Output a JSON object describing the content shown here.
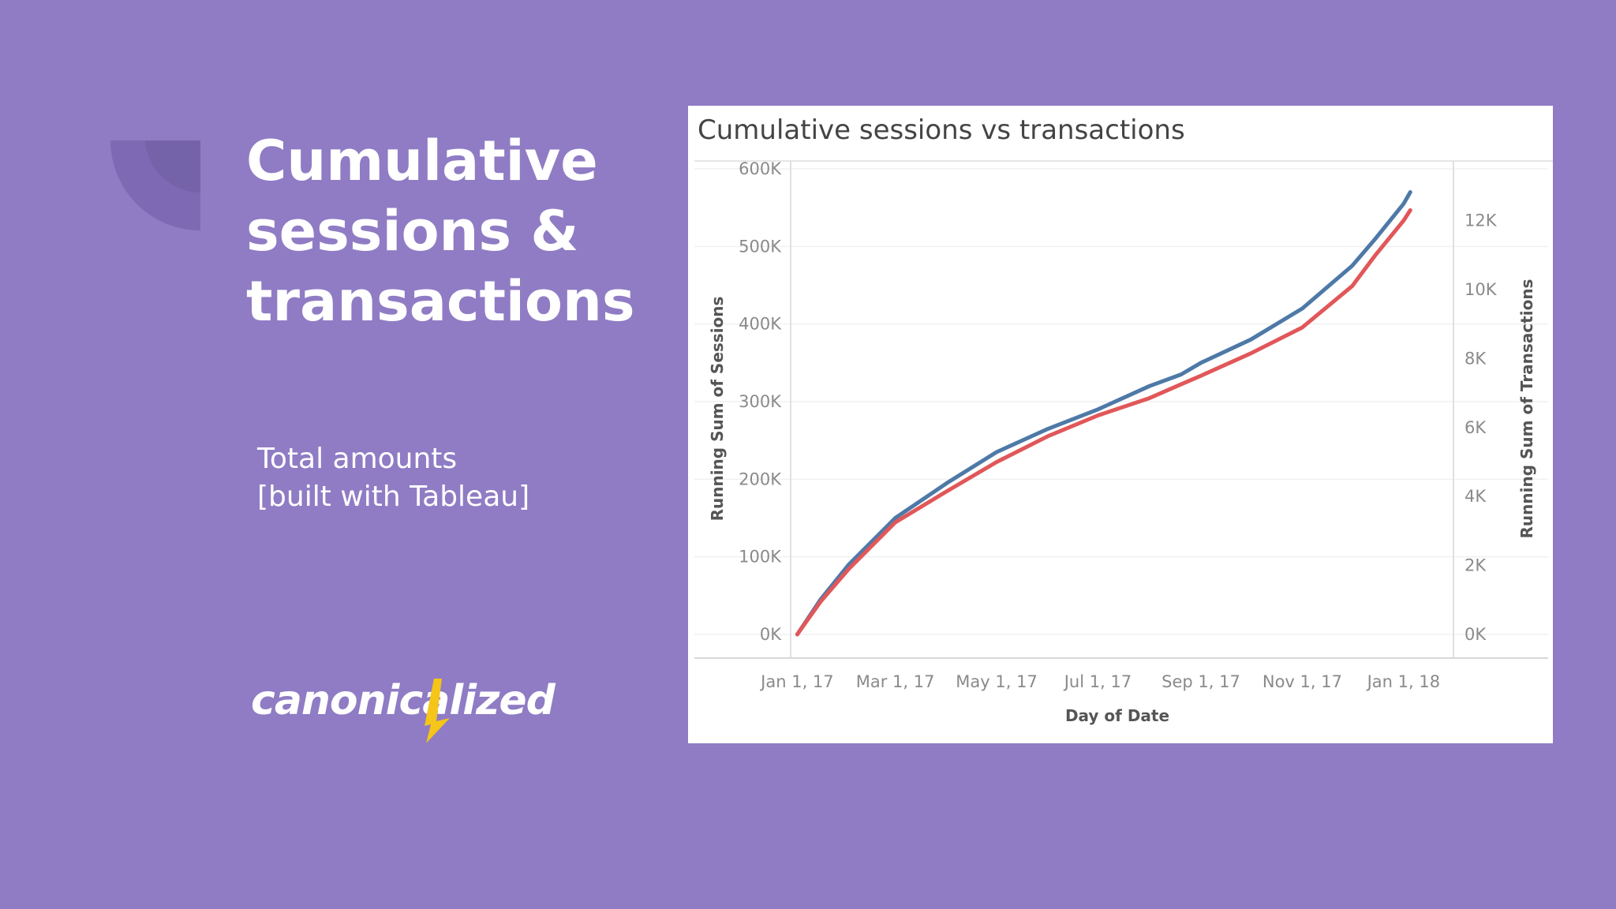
{
  "slide": {
    "heading_lines": [
      "Cumulative",
      "sessions &",
      "transactions"
    ],
    "subtitle_lines": [
      "Total amounts",
      "[built with Tableau]"
    ],
    "logo_text": "canonicalized",
    "colors": {
      "background": "#8f7cc4",
      "logo_accent": "#f5c518"
    }
  },
  "chart_data": {
    "type": "line",
    "title": "Cumulative sessions vs transactions",
    "xlabel": "Day of Date",
    "ylabel": "Running Sum of Sessions",
    "y2label": "Running Sum of Transactions",
    "x_ticks": [
      "Jan 1, 17",
      "Mar 1, 17",
      "May 1, 17",
      "Jul 1, 17",
      "Sep 1, 17",
      "Nov 1, 17",
      "Jan 1, 18"
    ],
    "y_ticks": [
      "0K",
      "100K",
      "200K",
      "300K",
      "400K",
      "500K",
      "600K"
    ],
    "y2_ticks": [
      "0K",
      "2K",
      "4K",
      "6K",
      "8K",
      "10K",
      "12K"
    ],
    "ylim": [
      0,
      600000
    ],
    "y2lim": [
      0,
      13500
    ],
    "xlim": [
      "2016-12-28",
      "2018-01-31"
    ],
    "grid": true,
    "series": [
      {
        "axis": "left",
        "color": "#4e79a7",
        "x": [
          "2017-01-01",
          "2017-01-15",
          "2017-02-01",
          "2017-03-01",
          "2017-04-01",
          "2017-05-01",
          "2017-06-01",
          "2017-07-01",
          "2017-08-01",
          "2017-08-20",
          "2017-09-01",
          "2017-10-01",
          "2017-11-01",
          "2017-12-01",
          "2017-12-15",
          "2018-01-01",
          "2018-01-05"
        ],
        "y": [
          0,
          45000,
          90000,
          150000,
          195000,
          235000,
          265000,
          290000,
          320000,
          335000,
          350000,
          380000,
          420000,
          475000,
          510000,
          555000,
          570000
        ]
      },
      {
        "axis": "right",
        "color": "#e15759",
        "x": [
          "2017-01-01",
          "2017-01-15",
          "2017-02-01",
          "2017-03-01",
          "2017-04-01",
          "2017-05-01",
          "2017-06-01",
          "2017-07-01",
          "2017-08-01",
          "2017-08-20",
          "2017-09-01",
          "2017-10-01",
          "2017-11-01",
          "2017-12-01",
          "2017-12-15",
          "2018-01-01",
          "2018-01-05"
        ],
        "y": [
          0,
          950,
          1900,
          3250,
          4150,
          5000,
          5750,
          6350,
          6850,
          7250,
          7500,
          8150,
          8900,
          10100,
          11000,
          12000,
          12300
        ]
      }
    ]
  }
}
